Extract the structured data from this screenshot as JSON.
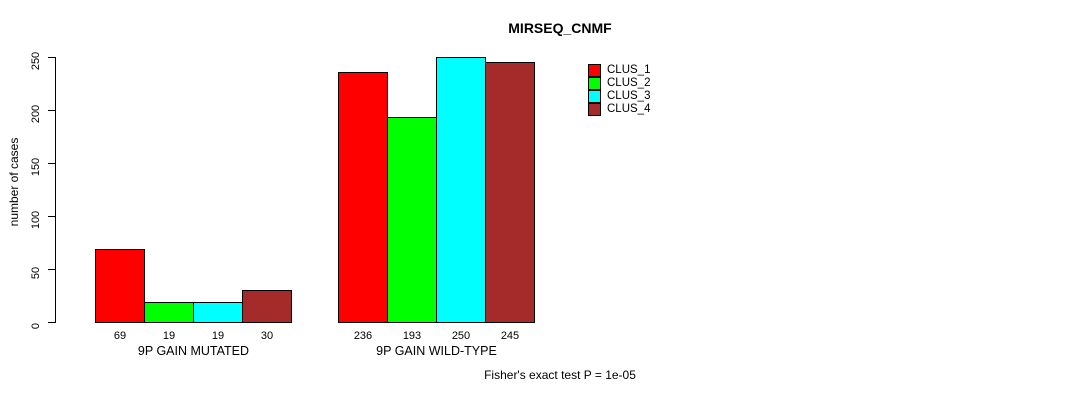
{
  "title": "MIRSEQ_CNMF",
  "footer": "Fisher's exact test P = 1e-05",
  "chart_data": {
    "type": "bar",
    "title": "MIRSEQ_CNMF",
    "xlabel": "",
    "ylabel": "number of cases",
    "ylim": [
      0,
      250
    ],
    "yticks": [
      0,
      50,
      100,
      150,
      200,
      250
    ],
    "grid": false,
    "legend_position": "right",
    "categories": [
      "9P GAIN MUTATED",
      "9P GAIN WILD-TYPE"
    ],
    "series": [
      {
        "name": "CLUS_1",
        "color": "#FF0000",
        "values": [
          69,
          236
        ]
      },
      {
        "name": "CLUS_2",
        "color": "#00FF00",
        "values": [
          19,
          193
        ]
      },
      {
        "name": "CLUS_3",
        "color": "#00FFFF",
        "values": [
          19,
          250
        ]
      },
      {
        "name": "CLUS_4",
        "color": "#A52A2A",
        "values": [
          30,
          245
        ]
      }
    ],
    "bar_value_labels": {
      "9P GAIN MUTATED": [
        69,
        19,
        19,
        30
      ],
      "9P GAIN WILD-TYPE": [
        236,
        193,
        250,
        245
      ]
    },
    "annotation": "Fisher's exact test P = 1e-05"
  }
}
